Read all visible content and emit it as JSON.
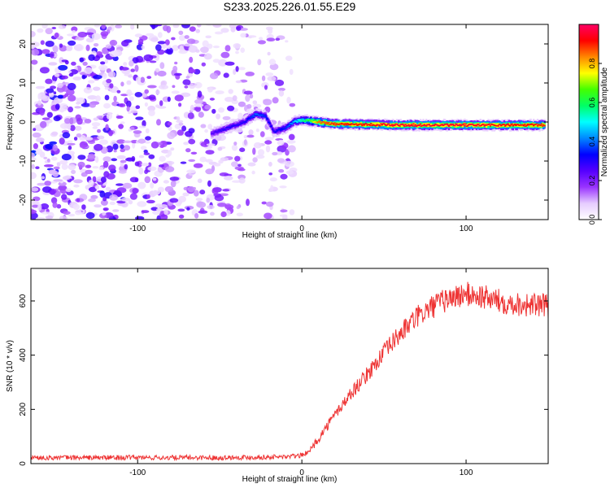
{
  "figure_title": "S233.2025.226.01.55.E29",
  "chart_data": [
    {
      "type": "heatmap",
      "title": "S233.2025.226.01.55.E29",
      "xlabel": "Height of straight line (km)",
      "ylabel": "Frequency (Hz)",
      "xlim": [
        -165,
        150
      ],
      "ylim": [
        -25,
        25
      ],
      "x_ticks": [
        -100,
        0,
        100
      ],
      "x_tick_labels": [
        "-100",
        "0",
        "100"
      ],
      "y_ticks": [
        -20,
        -10,
        0,
        10,
        20
      ],
      "y_tick_labels": [
        "-20",
        "-10",
        "0",
        "10",
        "20"
      ],
      "colorbar": {
        "label": "Normalized spectral amplitude",
        "range": [
          0,
          1
        ],
        "ticks": [
          0.0,
          0.2,
          0.4,
          0.6,
          0.8
        ],
        "tick_labels": [
          "0.0",
          "0.2",
          "0.4",
          "0.6",
          "0.8"
        ],
        "colors": [
          "#ffffff",
          "#e6ccff",
          "#9933ff",
          "#5500ff",
          "#0000ff",
          "#0088ff",
          "#00ffff",
          "#00ff66",
          "#44ff00",
          "#ffff00",
          "#ff8800",
          "#ff0000",
          "#ff0066"
        ]
      },
      "noise_region_x": [
        -165,
        -5
      ],
      "signal_trace": [
        {
          "x": -55,
          "f": -3.0,
          "amp": 0.25
        },
        {
          "x": -45,
          "f": -1.5,
          "amp": 0.3
        },
        {
          "x": -35,
          "f": 0.0,
          "amp": 0.3
        },
        {
          "x": -28,
          "f": 2.0,
          "amp": 0.4
        },
        {
          "x": -22,
          "f": 1.5,
          "amp": 0.35
        },
        {
          "x": -17,
          "f": -2.5,
          "amp": 0.3
        },
        {
          "x": -10,
          "f": -1.5,
          "amp": 0.35
        },
        {
          "x": -5,
          "f": 0.0,
          "amp": 0.45
        },
        {
          "x": 0,
          "f": 0.5,
          "amp": 0.55
        },
        {
          "x": 5,
          "f": 0.3,
          "amp": 0.65
        },
        {
          "x": 10,
          "f": 0.0,
          "amp": 0.85
        },
        {
          "x": 20,
          "f": -0.5,
          "amp": 0.9
        },
        {
          "x": 60,
          "f": -0.8,
          "amp": 0.95
        },
        {
          "x": 100,
          "f": -0.8,
          "amp": 0.95
        },
        {
          "x": 148,
          "f": -0.8,
          "amp": 0.9
        }
      ]
    },
    {
      "type": "line",
      "xlabel": "Height of straight line (km)",
      "ylabel": "SNR (10 * v/v)",
      "xlim": [
        -165,
        150
      ],
      "ylim": [
        0,
        720
      ],
      "x_ticks": [
        -100,
        0,
        100
      ],
      "x_tick_labels": [
        "-100",
        "0",
        "100"
      ],
      "y_ticks": [
        0,
        200,
        400,
        600
      ],
      "y_tick_labels": [
        "0",
        "200",
        "400",
        "600"
      ],
      "series": [
        {
          "name": "SNR",
          "color": "#ee3333",
          "x": [
            -165,
            -100,
            -50,
            -10,
            0,
            5,
            10,
            20,
            30,
            40,
            50,
            60,
            70,
            80,
            90,
            100,
            110,
            120,
            130,
            140,
            150
          ],
          "y": [
            22,
            22,
            22,
            25,
            30,
            50,
            90,
            180,
            260,
            330,
            410,
            480,
            540,
            580,
            610,
            625,
            615,
            600,
            590,
            585,
            580
          ]
        }
      ]
    }
  ]
}
